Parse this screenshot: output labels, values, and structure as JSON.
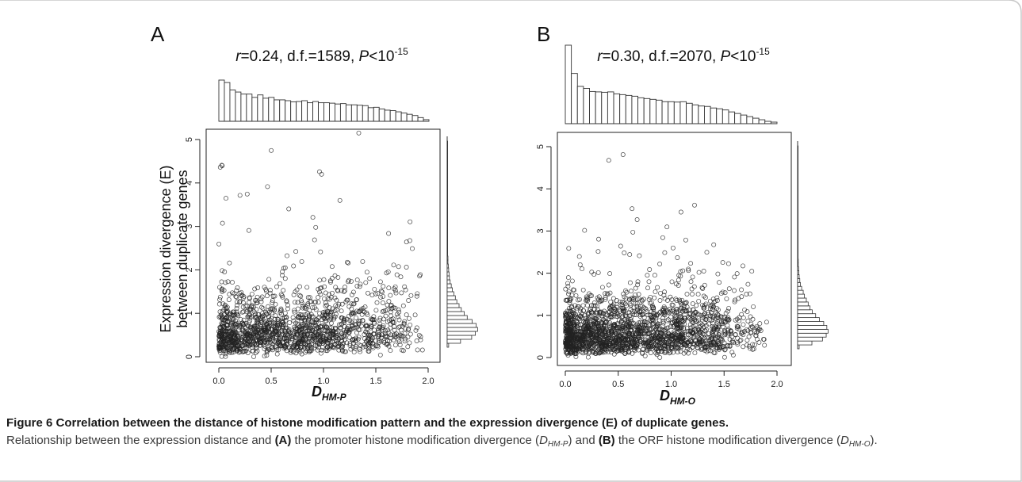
{
  "figure": {
    "caption_title": "Figure 6 Correlation between the distance of histone modification pattern and the expression divergence (E) of duplicate genes.",
    "caption_body_parts": [
      "Relationship between the expression distance and ",
      "(A)",
      " the promoter histone modification divergence (",
      "D",
      "HM-P",
      ") and ",
      "(B)",
      " the ORF histone modification divergence (",
      "D",
      "HM-O",
      ")."
    ]
  },
  "chart_data": [
    {
      "type": "scatter",
      "panel": "A",
      "stats": {
        "r_label": "r",
        "r_value": "=0.24, d.f.=1589, ",
        "p_label": "P",
        "p_value": "<10",
        "p_exp": "-15"
      },
      "xlabel": "D",
      "xlabel_sub": "HM-P",
      "ylabel_line1": "Expression divergence (E)",
      "ylabel_line2": "between duplicate genes",
      "xlim": [
        0,
        2.0
      ],
      "ylim": [
        0,
        5.2
      ],
      "xticks": [
        "0.0",
        "0.5",
        "1.0",
        "1.5",
        "2.0"
      ],
      "yticks": [
        "0",
        "1",
        "2",
        "3",
        "4",
        "5"
      ],
      "x_hist_counts": [
        100,
        94,
        76,
        71,
        66,
        66,
        58,
        64,
        56,
        58,
        52,
        52,
        50,
        47,
        48,
        50,
        45,
        48,
        45,
        45,
        44,
        42,
        43,
        40,
        40,
        39,
        38,
        33,
        34,
        30,
        27,
        26,
        23,
        20,
        17,
        14,
        9,
        4
      ],
      "y_hist_counts": [
        4,
        36,
        66,
        76,
        82,
        78,
        67,
        54,
        46,
        38,
        32,
        26,
        22,
        18,
        14,
        11,
        8,
        6,
        5,
        4,
        3,
        2,
        2,
        1,
        1,
        1,
        0,
        1,
        0,
        0,
        1,
        0,
        1,
        0,
        0,
        1,
        0,
        0,
        0,
        0,
        0,
        0,
        1,
        0,
        0,
        0,
        0,
        0,
        0,
        0,
        0,
        1
      ],
      "seed": 11,
      "n": 1591
    },
    {
      "type": "scatter",
      "panel": "B",
      "stats": {
        "r_label": "r",
        "r_value": "=0.30, d.f.=2070, ",
        "p_label": "P",
        "p_value": "<10",
        "p_exp": "-15"
      },
      "xlabel": "D",
      "xlabel_sub": "HM-O",
      "ylabel_line1": "",
      "ylabel_line2": "",
      "xlim": [
        0,
        2.0
      ],
      "ylim": [
        0,
        5.2
      ],
      "xticks": [
        "0.0",
        "0.5",
        "1.0",
        "1.5",
        "2.0"
      ],
      "yticks": [
        "0",
        "1",
        "2",
        "3",
        "4",
        "5"
      ],
      "x_hist_counts": [
        200,
        128,
        95,
        90,
        82,
        81,
        80,
        81,
        76,
        74,
        72,
        70,
        66,
        64,
        62,
        60,
        56,
        56,
        55,
        56,
        52,
        48,
        45,
        44,
        40,
        38,
        35,
        30,
        26,
        22,
        18,
        14,
        10,
        6,
        4
      ],
      "y_hist_counts": [
        5,
        46,
        80,
        92,
        98,
        94,
        84,
        70,
        58,
        47,
        40,
        34,
        28,
        22,
        18,
        13,
        9,
        7,
        5,
        4,
        3,
        2,
        2,
        1,
        1,
        1,
        1,
        1,
        1,
        0,
        1,
        1,
        0,
        0,
        1,
        0,
        0,
        1,
        0,
        1,
        1,
        0,
        1,
        0,
        0,
        0,
        0,
        0,
        0,
        0,
        0,
        1
      ],
      "seed": 29,
      "n": 2072
    }
  ]
}
